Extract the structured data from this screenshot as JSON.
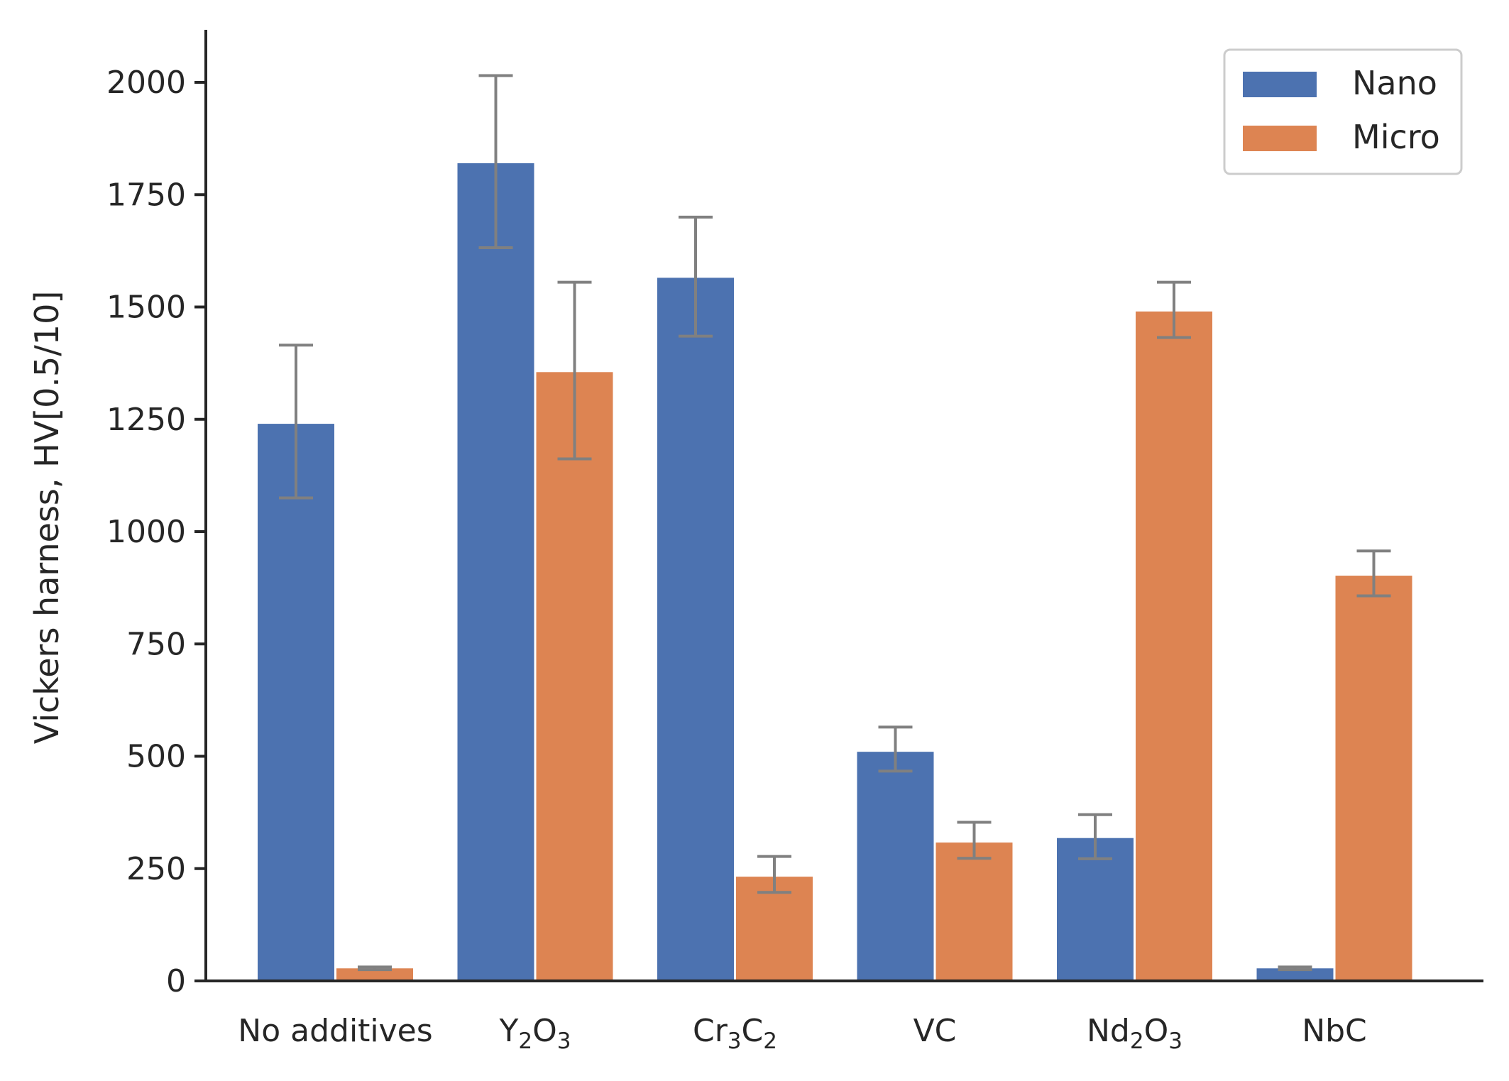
{
  "chart_data": {
    "type": "bar",
    "title": "",
    "xlabel": "",
    "ylabel": "Vickers harness, HV[0.5/10]",
    "ylim": [
      0,
      2110
    ],
    "yticks": [
      0,
      250,
      500,
      750,
      1000,
      1250,
      1500,
      1750,
      2000
    ],
    "categories": [
      {
        "base": "No additives",
        "subscripts": []
      },
      {
        "base": "Y2O3",
        "parts": [
          [
            "Y",
            ""
          ],
          [
            "2",
            "sub"
          ],
          [
            "O",
            ""
          ],
          [
            "3",
            "sub"
          ]
        ]
      },
      {
        "base": "Cr3C2",
        "parts": [
          [
            "Cr",
            ""
          ],
          [
            "3",
            "sub"
          ],
          [
            "C",
            ""
          ],
          [
            "2",
            "sub"
          ]
        ]
      },
      {
        "base": "VC",
        "parts": [
          [
            "VC",
            ""
          ]
        ]
      },
      {
        "base": "Nd2O3",
        "parts": [
          [
            "Nd",
            ""
          ],
          [
            "2",
            "sub"
          ],
          [
            "O",
            ""
          ],
          [
            "3",
            "sub"
          ]
        ]
      },
      {
        "base": "NbC",
        "parts": [
          [
            "NbC",
            ""
          ]
        ]
      }
    ],
    "series": [
      {
        "name": "Nano",
        "color": "#4c72b0",
        "values": [
          1240,
          1820,
          1565,
          510,
          318,
          28
        ],
        "err_low": [
          1075,
          1632,
          1435,
          467,
          272,
          25
        ],
        "err_high": [
          1415,
          2015,
          1700,
          565,
          370,
          31
        ]
      },
      {
        "name": "Micro",
        "color": "#dd8452",
        "values": [
          28,
          1355,
          232,
          308,
          1490,
          902
        ],
        "err_low": [
          25,
          1162,
          197,
          273,
          1432,
          857
        ],
        "err_high": [
          31,
          1555,
          277,
          353,
          1555,
          957
        ]
      }
    ],
    "error_bar_color": "#808080",
    "legend": {
      "position": "top-right"
    },
    "grid": false
  }
}
